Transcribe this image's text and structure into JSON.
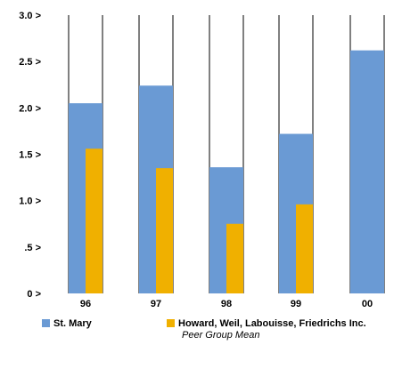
{
  "chart_data": {
    "type": "bar",
    "categories": [
      "96",
      "97",
      "98",
      "99",
      "00"
    ],
    "y_tick_labels": [
      "0 >",
      ".5 >",
      "1.0 >",
      "1.5 >",
      "2.0 >",
      "2.5 >",
      "3.0 >"
    ],
    "ylim": [
      0,
      3.0
    ],
    "title": "",
    "xlabel": "",
    "ylabel": "",
    "grid": false,
    "legend_position": "bottom",
    "series": [
      {
        "name": "St. Mary",
        "color": "#6a9ad4",
        "values": [
          2.05,
          2.24,
          1.36,
          1.72,
          2.62
        ]
      },
      {
        "name": "Howard, Weil, Labouisse, Friedrichs Inc.",
        "color": "#f0b000",
        "values": [
          1.56,
          1.35,
          0.75,
          0.96,
          null
        ]
      }
    ],
    "legend_subtitle": "Peer Group Mean"
  }
}
